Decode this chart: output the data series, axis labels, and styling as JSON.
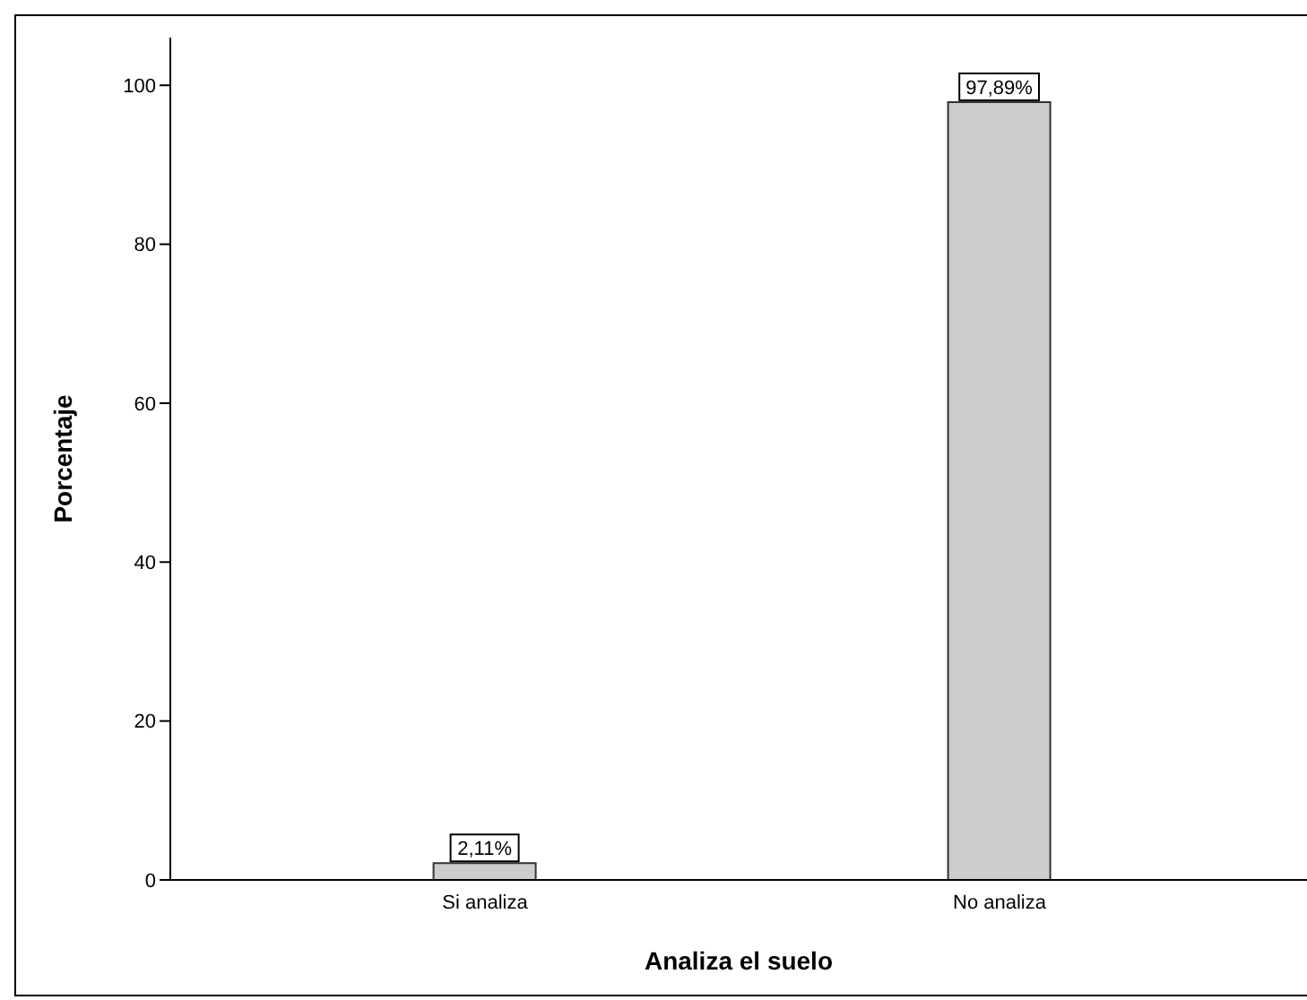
{
  "chart_data": {
    "type": "bar",
    "xlabel": "Analiza el suelo",
    "ylabel": "Porcentaje",
    "categories": [
      "Si analiza",
      "No analiza"
    ],
    "values": [
      2.11,
      97.89
    ],
    "value_labels": [
      "2,11%",
      "97,89%"
    ],
    "color": "#cccccc",
    "ylim": [
      0,
      106
    ],
    "yticks": [
      0,
      20,
      40,
      60,
      80,
      100
    ]
  }
}
